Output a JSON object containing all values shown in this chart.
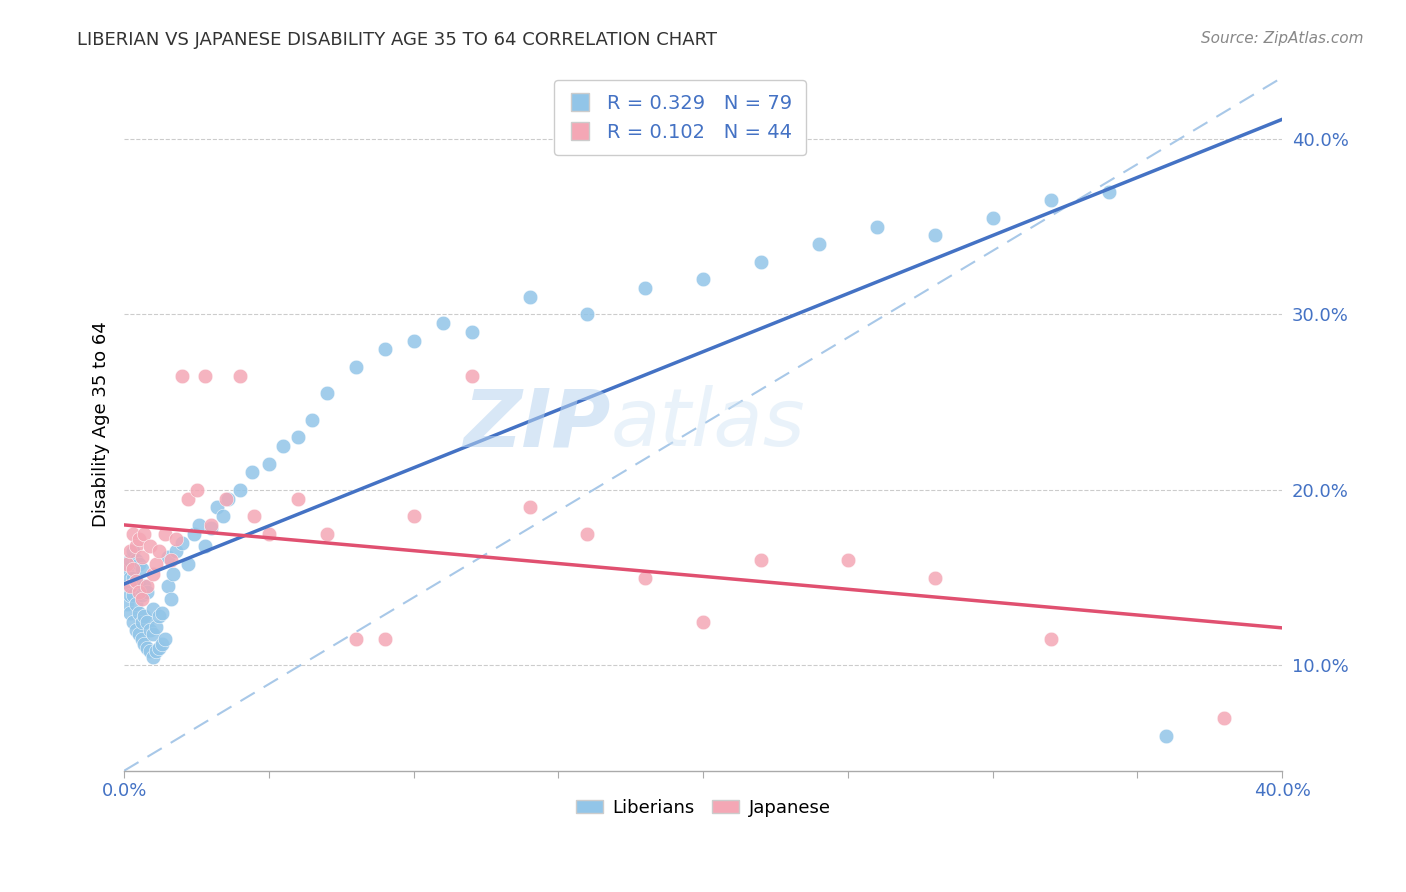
{
  "title": "LIBERIAN VS JAPANESE DISABILITY AGE 35 TO 64 CORRELATION CHART",
  "source_text": "Source: ZipAtlas.com",
  "ylabel": "Disability Age 35 to 64",
  "ytick_labels": [
    "10.0%",
    "20.0%",
    "30.0%",
    "40.0%"
  ],
  "ytick_values": [
    0.1,
    0.2,
    0.3,
    0.4
  ],
  "xmin": 0.0,
  "xmax": 0.4,
  "ymin": 0.04,
  "ymax": 0.435,
  "legend_r1": "R = 0.329",
  "legend_n1": "N = 79",
  "legend_r2": "R = 0.102",
  "legend_n2": "N = 44",
  "color_liberian": "#92C5E8",
  "color_japanese": "#F4A7B5",
  "color_trendline_liberian": "#4472C4",
  "color_trendline_japanese": "#E05070",
  "color_ref_line": "#A8C8E8",
  "watermark_zip": "ZIP",
  "watermark_atlas": "atlas",
  "liberian_x": [
    0.001,
    0.001,
    0.001,
    0.002,
    0.002,
    0.002,
    0.002,
    0.003,
    0.003,
    0.003,
    0.003,
    0.004,
    0.004,
    0.004,
    0.004,
    0.005,
    0.005,
    0.005,
    0.005,
    0.006,
    0.006,
    0.006,
    0.006,
    0.007,
    0.007,
    0.007,
    0.008,
    0.008,
    0.008,
    0.009,
    0.009,
    0.01,
    0.01,
    0.01,
    0.011,
    0.011,
    0.012,
    0.012,
    0.013,
    0.013,
    0.014,
    0.015,
    0.015,
    0.016,
    0.017,
    0.018,
    0.02,
    0.022,
    0.024,
    0.026,
    0.028,
    0.03,
    0.032,
    0.034,
    0.036,
    0.04,
    0.044,
    0.05,
    0.055,
    0.06,
    0.065,
    0.07,
    0.08,
    0.09,
    0.1,
    0.11,
    0.12,
    0.14,
    0.16,
    0.18,
    0.2,
    0.22,
    0.24,
    0.26,
    0.28,
    0.3,
    0.32,
    0.34,
    0.36
  ],
  "liberian_y": [
    0.135,
    0.145,
    0.155,
    0.13,
    0.14,
    0.15,
    0.16,
    0.125,
    0.14,
    0.15,
    0.165,
    0.12,
    0.135,
    0.148,
    0.16,
    0.118,
    0.13,
    0.145,
    0.158,
    0.115,
    0.125,
    0.14,
    0.155,
    0.112,
    0.128,
    0.145,
    0.11,
    0.125,
    0.142,
    0.108,
    0.12,
    0.105,
    0.118,
    0.132,
    0.108,
    0.122,
    0.11,
    0.128,
    0.112,
    0.13,
    0.115,
    0.145,
    0.162,
    0.138,
    0.152,
    0.165,
    0.17,
    0.158,
    0.175,
    0.18,
    0.168,
    0.178,
    0.19,
    0.185,
    0.195,
    0.2,
    0.21,
    0.215,
    0.225,
    0.23,
    0.24,
    0.255,
    0.27,
    0.28,
    0.285,
    0.295,
    0.29,
    0.31,
    0.3,
    0.315,
    0.32,
    0.33,
    0.34,
    0.35,
    0.345,
    0.355,
    0.365,
    0.37,
    0.06
  ],
  "japanese_x": [
    0.001,
    0.002,
    0.002,
    0.003,
    0.003,
    0.004,
    0.004,
    0.005,
    0.005,
    0.006,
    0.006,
    0.007,
    0.008,
    0.009,
    0.01,
    0.011,
    0.012,
    0.014,
    0.016,
    0.018,
    0.02,
    0.022,
    0.025,
    0.028,
    0.03,
    0.035,
    0.04,
    0.045,
    0.05,
    0.06,
    0.07,
    0.08,
    0.09,
    0.1,
    0.12,
    0.14,
    0.16,
    0.18,
    0.2,
    0.22,
    0.25,
    0.28,
    0.32,
    0.38
  ],
  "japanese_y": [
    0.158,
    0.145,
    0.165,
    0.155,
    0.175,
    0.148,
    0.168,
    0.142,
    0.172,
    0.138,
    0.162,
    0.175,
    0.145,
    0.168,
    0.152,
    0.158,
    0.165,
    0.175,
    0.16,
    0.172,
    0.265,
    0.195,
    0.2,
    0.265,
    0.18,
    0.195,
    0.265,
    0.185,
    0.175,
    0.195,
    0.175,
    0.115,
    0.115,
    0.185,
    0.265,
    0.19,
    0.175,
    0.15,
    0.125,
    0.16,
    0.16,
    0.15,
    0.115,
    0.07
  ],
  "ref_line_x0": 0.0,
  "ref_line_y0": 0.04,
  "ref_line_x1": 0.4,
  "ref_line_y1": 0.435
}
